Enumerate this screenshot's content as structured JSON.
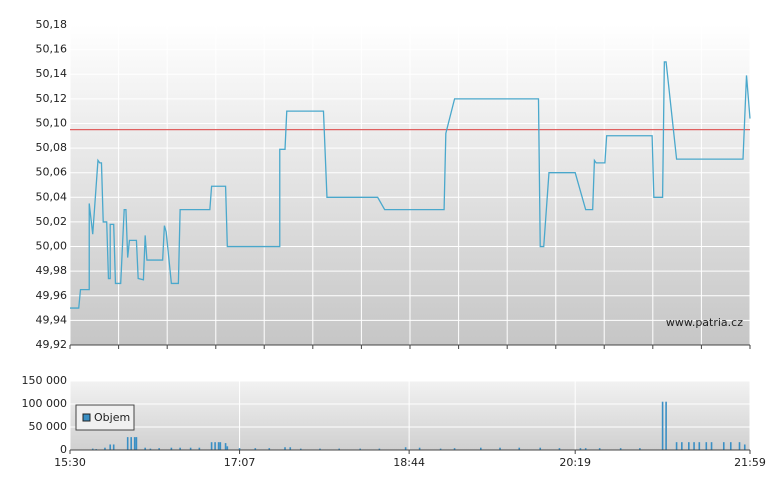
{
  "chart_data": [
    {
      "type": "line",
      "annotation": "www.patria.cz",
      "x": [
        930,
        935,
        936,
        941,
        941,
        943,
        946,
        947,
        948,
        949,
        951,
        952,
        953,
        953,
        955,
        956,
        959,
        961,
        962,
        963,
        964,
        968,
        969,
        972,
        973,
        974,
        976,
        983,
        984,
        985,
        988,
        992,
        993,
        1010,
        1011,
        1019,
        1020,
        1050,
        1050,
        1053,
        1054,
        1075,
        1077,
        1106,
        1110,
        1144,
        1145,
        1150,
        1198,
        1199,
        1201,
        1204,
        1219,
        1225,
        1229,
        1230,
        1231,
        1236,
        1237,
        1263,
        1264,
        1269,
        1270,
        1271,
        1277,
        1315,
        1317,
        1319
      ],
      "values": [
        49.95,
        49.95,
        49.965,
        49.965,
        50.035,
        50.01,
        50.07,
        50.068,
        50.068,
        50.02,
        50.02,
        49.974,
        49.974,
        50.018,
        50.018,
        49.97,
        49.97,
        50.03,
        50.03,
        49.991,
        50.005,
        50.005,
        49.974,
        49.973,
        50.009,
        49.989,
        49.989,
        49.989,
        50.017,
        50.012,
        49.97,
        49.97,
        50.03,
        50.03,
        50.049,
        50.049,
        50.0,
        50.0,
        50.079,
        50.079,
        50.11,
        50.11,
        50.04,
        50.04,
        50.03,
        50.03,
        50.092,
        50.12,
        50.12,
        50.0,
        50.0,
        50.06,
        50.06,
        50.03,
        50.03,
        50.07,
        50.068,
        50.068,
        50.09,
        50.09,
        50.04,
        50.04,
        50.15,
        50.15,
        50.071,
        50.071,
        50.139,
        50.104
      ],
      "color": "#4aa8cc",
      "reference_line": {
        "value": 50.095,
        "color": "#e06060"
      },
      "xlim": [
        930,
        1319
      ],
      "xticks": [
        930,
        957.8,
        985.6,
        1013.4,
        1041.1,
        1068.9,
        1096.7,
        1124.5,
        1152.3,
        1180.1,
        1207.9,
        1235.6,
        1263.4,
        1291.2,
        1319
      ],
      "ylim": [
        49.92,
        50.18
      ],
      "yticks": [
        {
          "value": 49.92,
          "label": "49,92"
        },
        {
          "value": 49.94,
          "label": "49,94"
        },
        {
          "value": 49.96,
          "label": "49,96"
        },
        {
          "value": 49.98,
          "label": "49,98"
        },
        {
          "value": 50.0,
          "label": "50,00"
        },
        {
          "value": 50.02,
          "label": "50,02"
        },
        {
          "value": 50.04,
          "label": "50,04"
        },
        {
          "value": 50.06,
          "label": "50,06"
        },
        {
          "value": 50.08,
          "label": "50,08"
        },
        {
          "value": 50.1,
          "label": "50,10"
        },
        {
          "value": 50.12,
          "label": "50,12"
        },
        {
          "value": 50.14,
          "label": "50,14"
        },
        {
          "value": 50.16,
          "label": "50,16"
        },
        {
          "value": 50.18,
          "label": "50,18"
        }
      ],
      "grid": true
    },
    {
      "type": "bar",
      "x": [
        943,
        945,
        950,
        953,
        955,
        963,
        965,
        967,
        968,
        973,
        976,
        981,
        988,
        993,
        999,
        1004,
        1011,
        1013,
        1015,
        1016,
        1019,
        1020,
        1027,
        1036,
        1044,
        1053,
        1056,
        1062,
        1073,
        1084,
        1096,
        1107,
        1122,
        1130,
        1142,
        1150,
        1165,
        1176,
        1187,
        1199,
        1210,
        1222,
        1225,
        1233,
        1245,
        1256,
        1269,
        1271,
        1277,
        1280,
        1284,
        1287,
        1290,
        1294,
        1297,
        1304,
        1308,
        1313,
        1316
      ],
      "series": [
        {
          "name": "Objem",
          "color": "#3a8fc4",
          "values": [
            3000,
            2000,
            5000,
            12000,
            12000,
            28000,
            28000,
            28000,
            28000,
            5000,
            3000,
            4000,
            5000,
            5000,
            5000,
            5000,
            17000,
            17000,
            17000,
            17000,
            15000,
            8000,
            4000,
            4000,
            4000,
            6000,
            6000,
            3000,
            3000,
            3000,
            3000,
            3000,
            6000,
            5000,
            3000,
            4000,
            5000,
            5000,
            5000,
            5000,
            4000,
            4000,
            4000,
            4000,
            4000,
            4000,
            105000,
            105000,
            17000,
            17000,
            17000,
            17000,
            17000,
            17000,
            17000,
            17000,
            17000,
            17000,
            12000
          ]
        }
      ],
      "legend": "lower-left",
      "xlim": [
        930,
        1319
      ],
      "xticks": [
        {
          "value": 930,
          "label": "15:30"
        },
        {
          "value": 1027,
          "label": "17:07"
        },
        {
          "value": 1124,
          "label": "18:44"
        },
        {
          "value": 1219,
          "label": "20:19"
        },
        {
          "value": 1319,
          "label": "21:59"
        }
      ],
      "ylim": [
        0,
        150000
      ],
      "yticks": [
        0,
        {
          "value": 50000,
          "label": "50 000"
        },
        {
          "value": 100000,
          "label": "100 000"
        },
        {
          "value": 150000,
          "label": "150 000"
        }
      ],
      "grid": true
    }
  ]
}
